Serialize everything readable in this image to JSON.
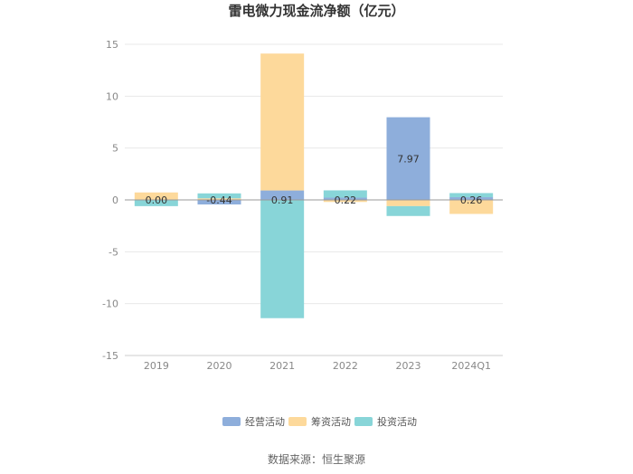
{
  "chart_data": {
    "type": "bar",
    "stacked": true,
    "title": "雷电微力现金流净额（亿元）",
    "categories": [
      "2019",
      "2020",
      "2021",
      "2022",
      "2023",
      "2024Q1"
    ],
    "series": [
      {
        "name": "经营活动",
        "color": "#8eaedb",
        "values": [
          0.0,
          -0.44,
          0.91,
          0.22,
          7.97,
          0.26
        ]
      },
      {
        "name": "筹资活动",
        "color": "#fdd99b",
        "values": [
          0.72,
          0.15,
          13.2,
          -0.2,
          -0.6,
          -1.35
        ]
      },
      {
        "name": "投资活动",
        "color": "#88d5d8",
        "values": [
          -0.6,
          0.48,
          -11.4,
          0.7,
          -0.95,
          0.4
        ]
      }
    ],
    "data_labels": [
      "0.00",
      "-0.44",
      "0.91",
      "0.22",
      "7.97",
      "0.26"
    ],
    "yticks": [
      15,
      10,
      5,
      0,
      -5,
      -10,
      -15
    ],
    "ylim": [
      -15,
      15
    ],
    "grid": true,
    "legend_position": "bottom"
  },
  "source": "数据来源：恒生聚源"
}
